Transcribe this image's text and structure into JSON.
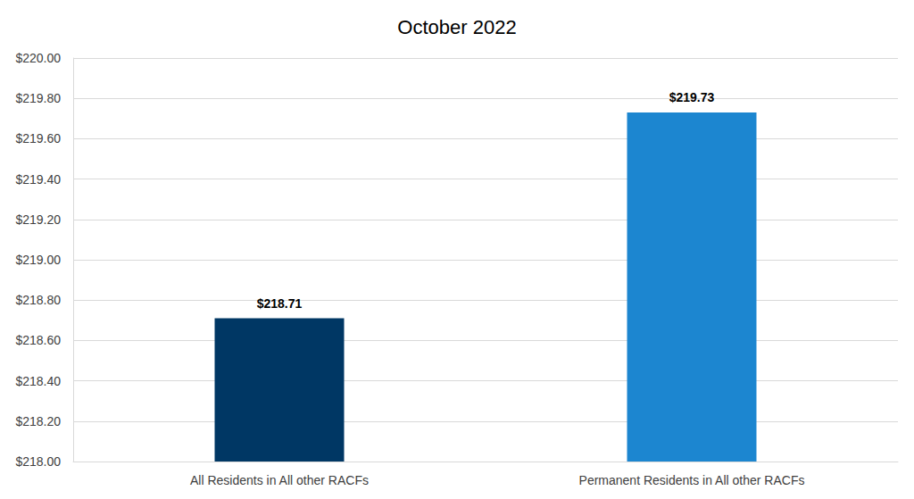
{
  "chart_data": {
    "type": "bar",
    "title": "October 2022",
    "categories": [
      "All Residents in All other RACFs",
      "Permanent Residents in All other RACFs"
    ],
    "values": [
      218.71,
      219.73
    ],
    "value_labels": [
      "$218.71",
      "$219.73"
    ],
    "colors": [
      "#003764",
      "#1c86d0"
    ],
    "ylim": [
      218,
      220
    ],
    "yticks": [
      {
        "value": 218,
        "label": "$218.00"
      },
      {
        "value": 218.2,
        "label": "$218.20"
      },
      {
        "value": 218.4,
        "label": "$218.40"
      },
      {
        "value": 218.6,
        "label": "$218.60"
      },
      {
        "value": 218.8,
        "label": "$218.80"
      },
      {
        "value": 219,
        "label": "$219.00"
      },
      {
        "value": 219.2,
        "label": "$219.20"
      },
      {
        "value": 219.4,
        "label": "$219.40"
      },
      {
        "value": 219.6,
        "label": "$219.60"
      },
      {
        "value": 219.8,
        "label": "$219.80"
      },
      {
        "value": 220,
        "label": "$220.00"
      }
    ],
    "grid": true,
    "data_labels": true
  }
}
